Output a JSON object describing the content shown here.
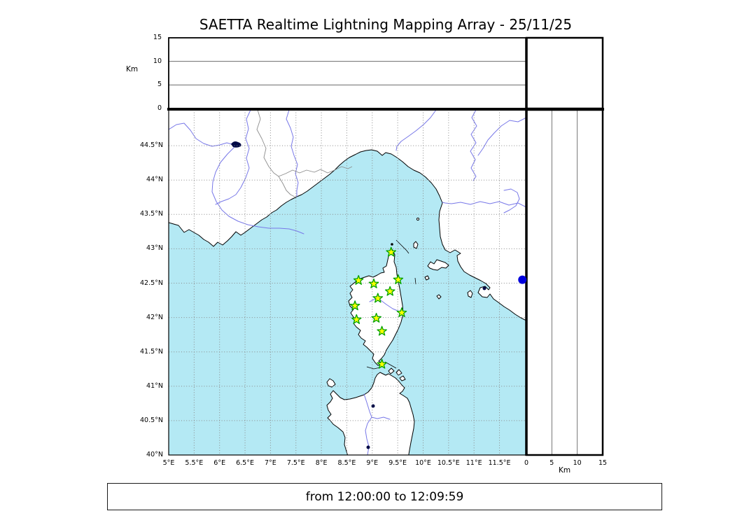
{
  "title": "SAETTA Realtime Lightning Mapping Array - 25/11/25",
  "status_bar": {
    "text": "from 12:00:00 to 12:09:59"
  },
  "chart_data": {
    "type": "scatter",
    "title": "SAETTA Realtime Lightning Mapping Array - 25/11/25",
    "time_window": {
      "from": "12:00:00",
      "to": "12:09:59"
    },
    "map_panel": {
      "lon_range": [
        5,
        12.03
      ],
      "lat_range": [
        40,
        45.02
      ],
      "lon_tick_values": [
        5,
        5.5,
        6,
        6.5,
        7,
        7.5,
        8,
        8.5,
        9,
        9.5,
        10,
        10.5,
        11,
        11.5
      ],
      "lon_tick_labels": [
        "5°E",
        "5.5°E",
        "6°E",
        "6.5°E",
        "7°E",
        "7.5°E",
        "8°E",
        "8.5°E",
        "9°E",
        "9.5°E",
        "10°E",
        "10.5°E",
        "11°E",
        "11.5°E"
      ],
      "lat_tick_values": [
        40,
        40.5,
        41,
        41.5,
        42,
        42.5,
        43,
        43.5,
        44,
        44.5
      ],
      "lat_tick_labels": [
        "40°N",
        "40.5°N",
        "41°N",
        "41.5°N",
        "42°N",
        "42.5°N",
        "43°N",
        "43.5°N",
        "44°N",
        "44.5°N"
      ],
      "grid_style": "dotted",
      "station_marker": "star",
      "stations": [
        {
          "lon": 9.37,
          "lat": 42.95
        },
        {
          "lon": 8.73,
          "lat": 42.54
        },
        {
          "lon": 9.03,
          "lat": 42.49
        },
        {
          "lon": 9.51,
          "lat": 42.55
        },
        {
          "lon": 9.35,
          "lat": 42.38
        },
        {
          "lon": 9.11,
          "lat": 42.28
        },
        {
          "lon": 8.66,
          "lat": 42.17
        },
        {
          "lon": 9.58,
          "lat": 42.07
        },
        {
          "lon": 8.69,
          "lat": 41.97
        },
        {
          "lon": 9.08,
          "lat": 41.99
        },
        {
          "lon": 9.19,
          "lat": 41.8
        },
        {
          "lon": 9.19,
          "lat": 41.32
        }
      ],
      "detections": [
        {
          "lon": 11.95,
          "lat": 42.55,
          "alt_km": 0
        }
      ]
    },
    "altitude_top_panel": {
      "axis_label": "Km",
      "tick_values": [
        0,
        5,
        10,
        15
      ],
      "range": [
        0,
        15
      ],
      "grid_km": [
        5,
        10
      ],
      "points": []
    },
    "altitude_right_panel": {
      "axis_label": "Km",
      "tick_values": [
        0,
        5,
        10,
        15
      ],
      "range": [
        0,
        15
      ],
      "grid_km": [
        5,
        10
      ],
      "points": []
    },
    "colors": {
      "sea": "#b4e9f4",
      "land": "#ffffff",
      "river": "#7878e8",
      "country_border": "#8c8c8c",
      "grid": "#8a8a8a",
      "station_fill": "#ffff00",
      "station_stroke": "#00a000",
      "detection": "#0000dd",
      "lake": "#000a46"
    }
  }
}
